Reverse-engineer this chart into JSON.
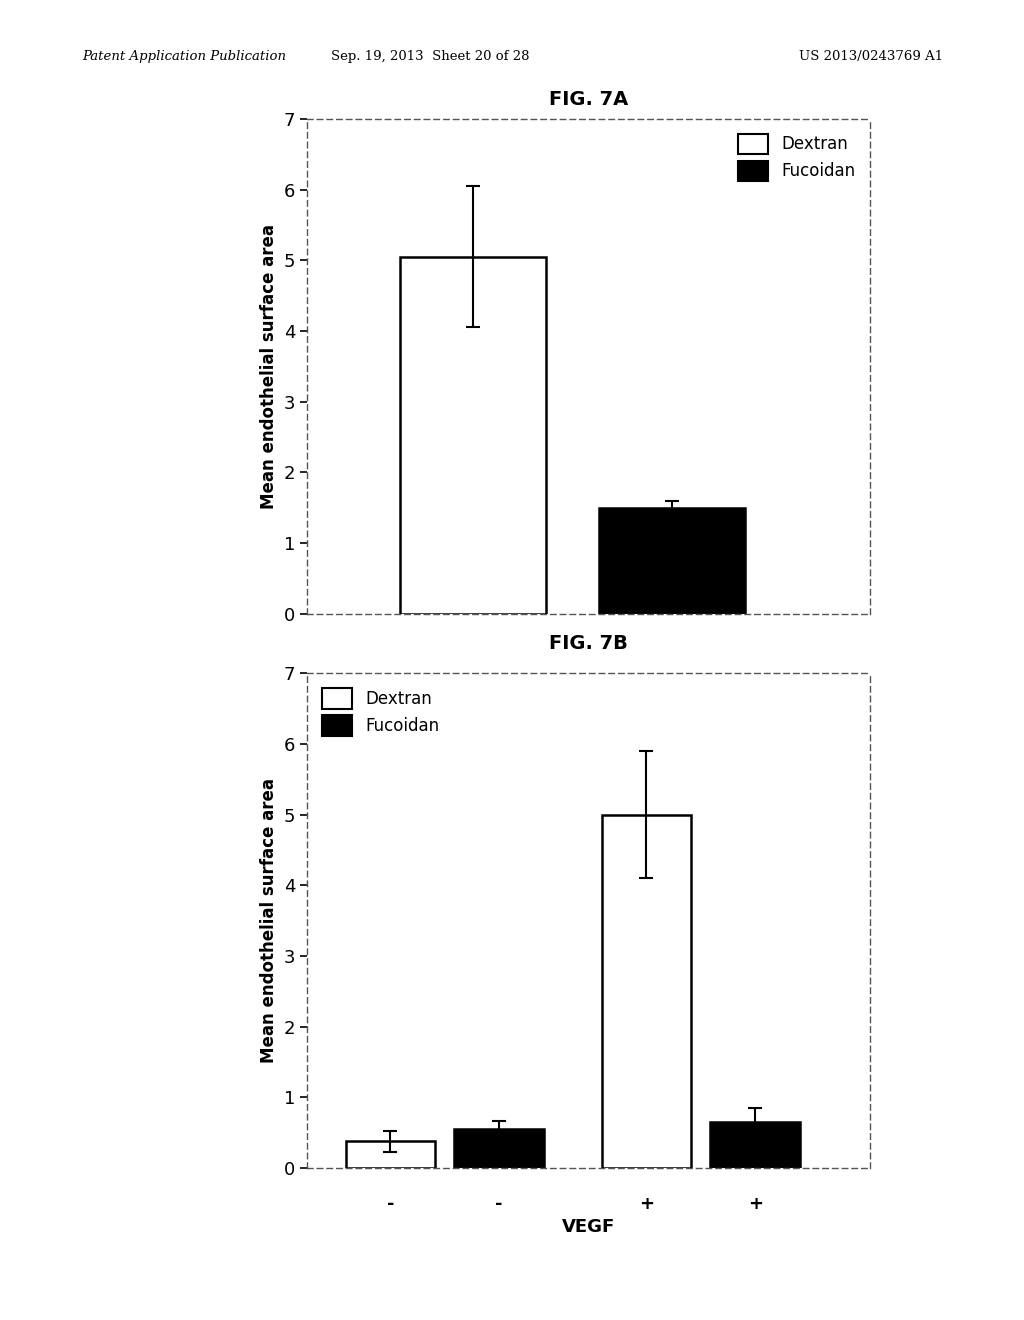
{
  "fig7a": {
    "title": "FIG. 7A",
    "ylabel": "Mean endothelial surface area",
    "ylim": [
      0,
      7
    ],
    "yticks": [
      0,
      1,
      2,
      3,
      4,
      5,
      6,
      7
    ],
    "bars": [
      {
        "label": "Dextran",
        "value": 5.05,
        "error": 1.0,
        "color": "#ffffff",
        "edgecolor": "#000000"
      },
      {
        "label": "Fucoidan",
        "value": 1.5,
        "error": 0.1,
        "color": "#000000",
        "edgecolor": "#000000"
      }
    ],
    "bar_positions": [
      0.3,
      0.6
    ],
    "bar_width": 0.22,
    "xlim": [
      0.05,
      0.9
    ],
    "legend_labels": [
      "Dextran",
      "Fucoidan"
    ],
    "legend_colors": [
      "#ffffff",
      "#000000"
    ]
  },
  "fig7b": {
    "title": "FIG. 7B",
    "ylabel": "Mean endothelial surface area",
    "xlabel": "VEGF",
    "ylim": [
      0,
      7
    ],
    "yticks": [
      0,
      1,
      2,
      3,
      4,
      5,
      6,
      7
    ],
    "bar_positions": [
      0.15,
      0.32,
      0.55,
      0.72
    ],
    "bar_width": 0.14,
    "xlim": [
      0.02,
      0.9
    ],
    "vegf_labels": [
      "-",
      "-",
      "+",
      "+"
    ],
    "bars": [
      {
        "label": "Dextran",
        "value": 0.38,
        "error": 0.15,
        "color": "#ffffff",
        "edgecolor": "#000000"
      },
      {
        "label": "Fucoidan",
        "value": 0.55,
        "error": 0.12,
        "color": "#000000",
        "edgecolor": "#000000"
      },
      {
        "label": "Dextran",
        "value": 5.0,
        "error": 0.9,
        "color": "#ffffff",
        "edgecolor": "#000000"
      },
      {
        "label": "Fucoidan",
        "value": 0.65,
        "error": 0.2,
        "color": "#000000",
        "edgecolor": "#000000"
      }
    ],
    "legend_labels": [
      "Dextran",
      "Fucoidan"
    ],
    "legend_colors": [
      "#ffffff",
      "#000000"
    ]
  },
  "header_left": "Patent Application Publication",
  "header_mid": "Sep. 19, 2013  Sheet 20 of 28",
  "header_right": "US 2013/0243769 A1",
  "bg_color": "#ffffff"
}
